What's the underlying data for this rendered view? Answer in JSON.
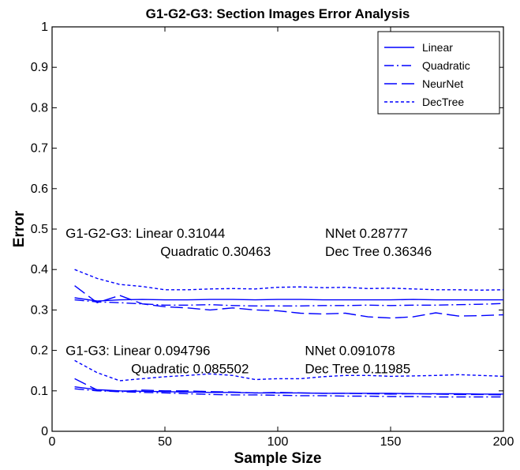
{
  "chart_data": {
    "type": "line",
    "title": "G1-G2-G3: Section Images Error Analysis",
    "xlabel": "Sample Size",
    "ylabel": "Error",
    "xlim": [
      0,
      200
    ],
    "ylim": [
      0,
      1
    ],
    "xticks": [
      0,
      50,
      100,
      150,
      200
    ],
    "xtick_labels": [
      "0",
      "50",
      "100",
      "150",
      "200"
    ],
    "yticks": [
      0,
      0.1,
      0.2,
      0.3,
      0.4,
      0.5,
      0.6,
      0.7,
      0.8,
      0.9,
      1
    ],
    "ytick_labels": [
      "0",
      "0.1",
      "0.2",
      "0.3",
      "0.4",
      "0.5",
      "0.6",
      "0.7",
      "0.8",
      "0.9",
      "1"
    ],
    "grid": false,
    "legend": {
      "position": "top-right",
      "entries": [
        {
          "name": "Linear",
          "style": "solid"
        },
        {
          "name": "Quadratic",
          "style": "dashdot"
        },
        {
          "name": "NeurNet",
          "style": "longdash"
        },
        {
          "name": "DecTree",
          "style": "dotted"
        }
      ]
    },
    "line_color": "#0000ff",
    "x": [
      10,
      20,
      30,
      40,
      50,
      60,
      70,
      80,
      90,
      100,
      110,
      120,
      130,
      140,
      150,
      160,
      170,
      180,
      190,
      200
    ],
    "series": [
      {
        "name": "Linear",
        "group": "G1-G2-G3",
        "style": "solid",
        "values": [
          0.33,
          0.322,
          0.325,
          0.326,
          0.325,
          0.325,
          0.326,
          0.326,
          0.325,
          0.326,
          0.326,
          0.325,
          0.325,
          0.325,
          0.325,
          0.326,
          0.325,
          0.325,
          0.325,
          0.325
        ]
      },
      {
        "name": "Quadratic",
        "group": "G1-G2-G3",
        "style": "dashdot",
        "values": [
          0.325,
          0.32,
          0.318,
          0.315,
          0.312,
          0.312,
          0.313,
          0.311,
          0.31,
          0.31,
          0.31,
          0.311,
          0.311,
          0.312,
          0.311,
          0.312,
          0.312,
          0.313,
          0.314,
          0.316
        ]
      },
      {
        "name": "NeurNet",
        "group": "G1-G2-G3",
        "style": "longdash",
        "values": [
          0.36,
          0.318,
          0.336,
          0.315,
          0.308,
          0.305,
          0.3,
          0.305,
          0.3,
          0.298,
          0.292,
          0.29,
          0.292,
          0.283,
          0.28,
          0.283,
          0.293,
          0.285,
          0.286,
          0.288
        ]
      },
      {
        "name": "DecTree",
        "group": "G1-G2-G3",
        "style": "dotted",
        "values": [
          0.4,
          0.378,
          0.363,
          0.358,
          0.35,
          0.35,
          0.352,
          0.353,
          0.352,
          0.356,
          0.357,
          0.355,
          0.356,
          0.353,
          0.354,
          0.352,
          0.35,
          0.35,
          0.349,
          0.35
        ]
      },
      {
        "name": "Linear",
        "group": "G1-G3",
        "style": "solid",
        "values": [
          0.11,
          0.103,
          0.1,
          0.099,
          0.098,
          0.097,
          0.096,
          0.096,
          0.095,
          0.095,
          0.095,
          0.094,
          0.094,
          0.094,
          0.094,
          0.093,
          0.093,
          0.093,
          0.092,
          0.092
        ]
      },
      {
        "name": "Quadratic",
        "group": "G1-G3",
        "style": "dashdot",
        "values": [
          0.105,
          0.1,
          0.098,
          0.096,
          0.095,
          0.093,
          0.091,
          0.09,
          0.09,
          0.089,
          0.088,
          0.088,
          0.087,
          0.087,
          0.086,
          0.086,
          0.085,
          0.085,
          0.085,
          0.085
        ]
      },
      {
        "name": "NeurNet",
        "group": "G1-G3",
        "style": "longdash",
        "values": [
          0.13,
          0.102,
          0.098,
          0.102,
          0.1,
          0.1,
          0.098,
          0.097,
          0.095,
          0.096,
          0.095,
          0.094,
          0.094,
          0.093,
          0.092,
          0.093,
          0.092,
          0.091,
          0.091,
          0.09
        ]
      },
      {
        "name": "DecTree",
        "group": "G1-G3",
        "style": "dotted",
        "values": [
          0.175,
          0.145,
          0.125,
          0.13,
          0.135,
          0.138,
          0.142,
          0.138,
          0.128,
          0.13,
          0.13,
          0.135,
          0.138,
          0.138,
          0.136,
          0.137,
          0.138,
          0.14,
          0.138,
          0.136
        ]
      }
    ],
    "annotations": [
      {
        "text": "G1-G2-G3: Linear 0.31044",
        "x": 6,
        "y": 0.49
      },
      {
        "text": "NNet 0.28777",
        "x": 121,
        "y": 0.49
      },
      {
        "text": "Quadratic 0.30463",
        "x": 48,
        "y": 0.445
      },
      {
        "text": "Dec Tree 0.36346",
        "x": 121,
        "y": 0.445
      },
      {
        "text": "G1-G3: Linear 0.094796",
        "x": 6,
        "y": 0.2
      },
      {
        "text": "NNet 0.091078",
        "x": 112,
        "y": 0.2
      },
      {
        "text": "Quadratic 0.085502",
        "x": 35,
        "y": 0.155
      },
      {
        "text": "Dec Tree 0.11985",
        "x": 112,
        "y": 0.155
      }
    ]
  }
}
